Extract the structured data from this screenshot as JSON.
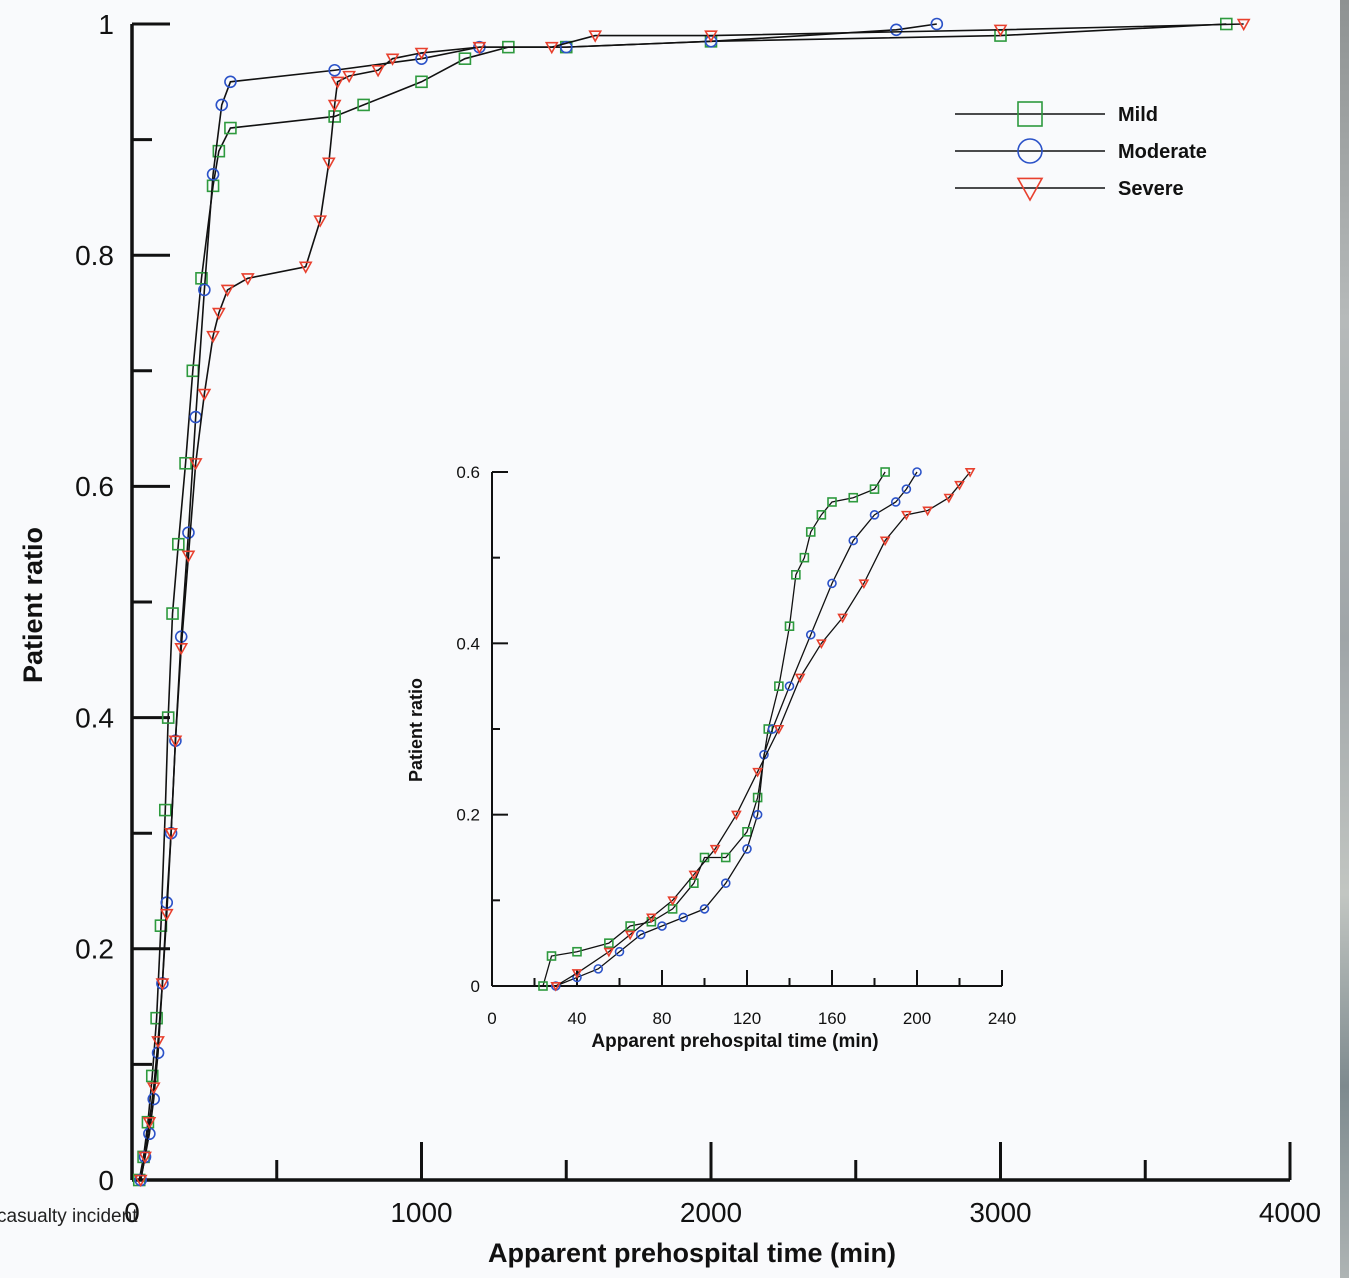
{
  "caption_fragment": "casualty incident",
  "chart_data": [
    {
      "type": "line",
      "xlabel": "Apparent prehospital time (min)",
      "ylabel": "Patient ratio",
      "xlim": [
        0,
        4000
      ],
      "ylim": [
        0,
        1
      ],
      "xticks": [
        0,
        1000,
        2000,
        3000,
        4000
      ],
      "yticks": [
        0,
        0.2,
        0.4,
        0.6,
        0.8,
        1
      ],
      "xtick_labels": [
        "0",
        "1000",
        "2000",
        "3000",
        "4000"
      ],
      "ytick_labels": [
        "0",
        "0.2",
        "0.4",
        "0.6",
        "0.8",
        "1"
      ],
      "grid": false,
      "legend": "top-right",
      "series": [
        {
          "name": "Mild",
          "marker": "square",
          "color": "#2e9a3e",
          "x": [
            25,
            40,
            55,
            70,
            85,
            100,
            115,
            125,
            140,
            160,
            185,
            210,
            240,
            280,
            300,
            340,
            700,
            800,
            1000,
            1150,
            1300,
            1500,
            2000,
            3000,
            3780
          ],
          "y": [
            0.0,
            0.02,
            0.05,
            0.09,
            0.14,
            0.22,
            0.32,
            0.4,
            0.49,
            0.55,
            0.62,
            0.7,
            0.78,
            0.86,
            0.89,
            0.91,
            0.92,
            0.93,
            0.95,
            0.97,
            0.98,
            0.98,
            0.985,
            0.99,
            1.0
          ]
        },
        {
          "name": "Moderate",
          "marker": "circle",
          "color": "#2b52c8",
          "x": [
            30,
            45,
            60,
            75,
            90,
            105,
            120,
            135,
            150,
            170,
            195,
            220,
            250,
            280,
            310,
            340,
            700,
            1000,
            1200,
            1500,
            2000,
            2640,
            2780
          ],
          "y": [
            0.0,
            0.02,
            0.04,
            0.07,
            0.11,
            0.17,
            0.24,
            0.3,
            0.38,
            0.47,
            0.56,
            0.66,
            0.77,
            0.87,
            0.93,
            0.95,
            0.96,
            0.97,
            0.98,
            0.98,
            0.985,
            0.995,
            1.0
          ]
        },
        {
          "name": "Severe",
          "marker": "triangle-down",
          "color": "#e8402e",
          "x": [
            30,
            45,
            60,
            75,
            90,
            105,
            120,
            135,
            150,
            170,
            195,
            220,
            250,
            280,
            300,
            330,
            400,
            600,
            650,
            680,
            700,
            710,
            750,
            850,
            900,
            1000,
            1200,
            1450,
            1600,
            2000,
            3000,
            3840
          ],
          "y": [
            0.0,
            0.02,
            0.05,
            0.08,
            0.12,
            0.17,
            0.23,
            0.3,
            0.38,
            0.46,
            0.54,
            0.62,
            0.68,
            0.73,
            0.75,
            0.77,
            0.78,
            0.79,
            0.83,
            0.88,
            0.93,
            0.95,
            0.955,
            0.96,
            0.97,
            0.975,
            0.98,
            0.98,
            0.99,
            0.99,
            0.995,
            1.0
          ]
        }
      ]
    },
    {
      "type": "line",
      "xlabel": "Apparent prehospital time (min)",
      "ylabel": "Patient ratio",
      "xlim": [
        0,
        240
      ],
      "ylim": [
        0,
        0.6
      ],
      "xticks": [
        0,
        40,
        80,
        120,
        160,
        200,
        240
      ],
      "yticks": [
        0,
        0.2,
        0.4,
        0.6
      ],
      "xtick_labels": [
        "0",
        "40",
        "80",
        "120",
        "160",
        "200",
        "240"
      ],
      "ytick_labels": [
        "0",
        "0.2",
        "0.4",
        "0.6"
      ],
      "grid": false,
      "series": [
        {
          "name": "Mild",
          "marker": "square",
          "color": "#2e9a3e",
          "x": [
            24,
            28,
            40,
            55,
            65,
            75,
            85,
            95,
            100,
            110,
            120,
            125,
            130,
            135,
            140,
            143,
            147,
            150,
            155,
            160,
            170,
            180,
            185
          ],
          "y": [
            0.0,
            0.035,
            0.04,
            0.05,
            0.07,
            0.075,
            0.09,
            0.12,
            0.15,
            0.15,
            0.18,
            0.22,
            0.3,
            0.35,
            0.42,
            0.48,
            0.5,
            0.53,
            0.55,
            0.565,
            0.57,
            0.58,
            0.6
          ]
        },
        {
          "name": "Moderate",
          "marker": "circle",
          "color": "#2b52c8",
          "x": [
            30,
            40,
            50,
            60,
            70,
            80,
            90,
            100,
            110,
            120,
            125,
            128,
            132,
            140,
            150,
            160,
            170,
            180,
            190,
            195,
            200
          ],
          "y": [
            0.0,
            0.01,
            0.02,
            0.04,
            0.06,
            0.07,
            0.08,
            0.09,
            0.12,
            0.16,
            0.2,
            0.27,
            0.3,
            0.35,
            0.41,
            0.47,
            0.52,
            0.55,
            0.565,
            0.58,
            0.6
          ]
        },
        {
          "name": "Severe",
          "marker": "triangle-down",
          "color": "#e8402e",
          "x": [
            30,
            40,
            55,
            65,
            75,
            85,
            95,
            105,
            115,
            125,
            135,
            145,
            155,
            165,
            175,
            185,
            195,
            205,
            215,
            220,
            225
          ],
          "y": [
            0.0,
            0.015,
            0.04,
            0.06,
            0.08,
            0.1,
            0.13,
            0.16,
            0.2,
            0.25,
            0.3,
            0.36,
            0.4,
            0.43,
            0.47,
            0.52,
            0.55,
            0.555,
            0.57,
            0.585,
            0.6
          ]
        }
      ]
    }
  ]
}
